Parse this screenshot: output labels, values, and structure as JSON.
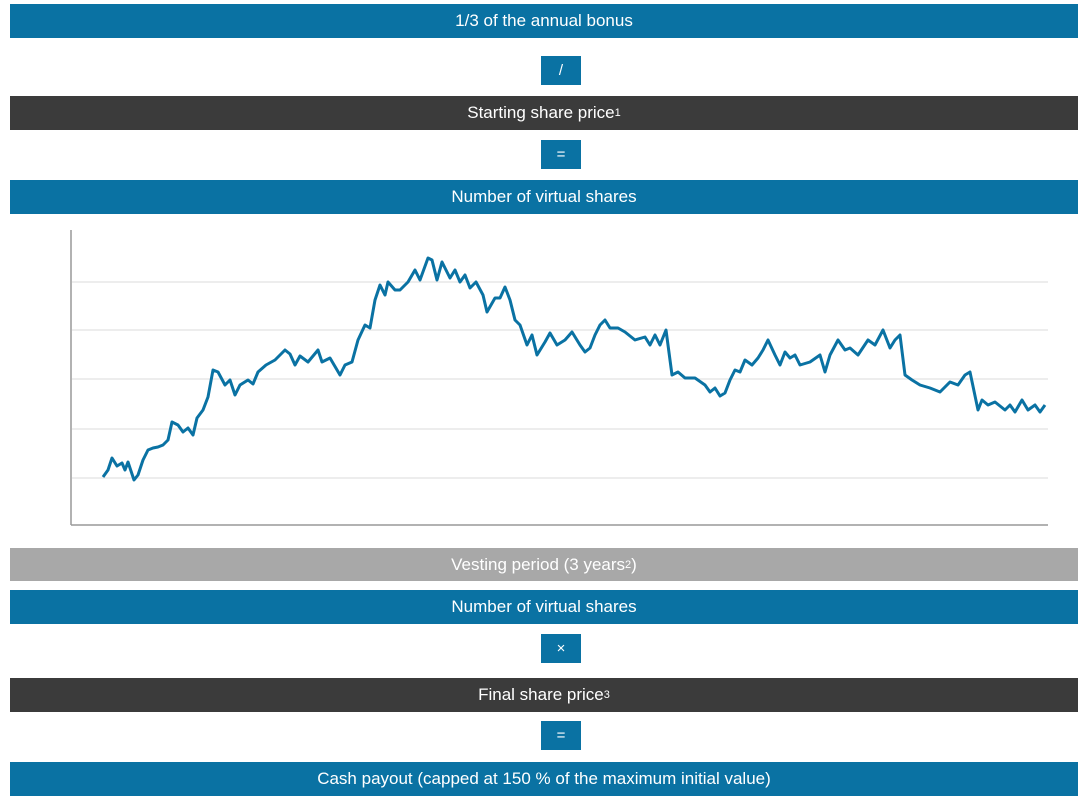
{
  "steps": [
    {
      "text": "1/3 of the annual bonus"
    },
    {
      "text": "/"
    },
    {
      "text": "Starting share price",
      "sup": "1"
    },
    {
      "text": "="
    },
    {
      "text": "Number of virtual shares"
    },
    {
      "text": "Vesting period (3 years",
      "sup": "2",
      "after": ")"
    },
    {
      "text": "Number of virtual shares"
    },
    {
      "text": "×"
    },
    {
      "text": "Final share price",
      "sup": "3"
    },
    {
      "text": "="
    },
    {
      "text": "Cash payout (capped at 150 % of the maximum initial value)"
    }
  ]
}
